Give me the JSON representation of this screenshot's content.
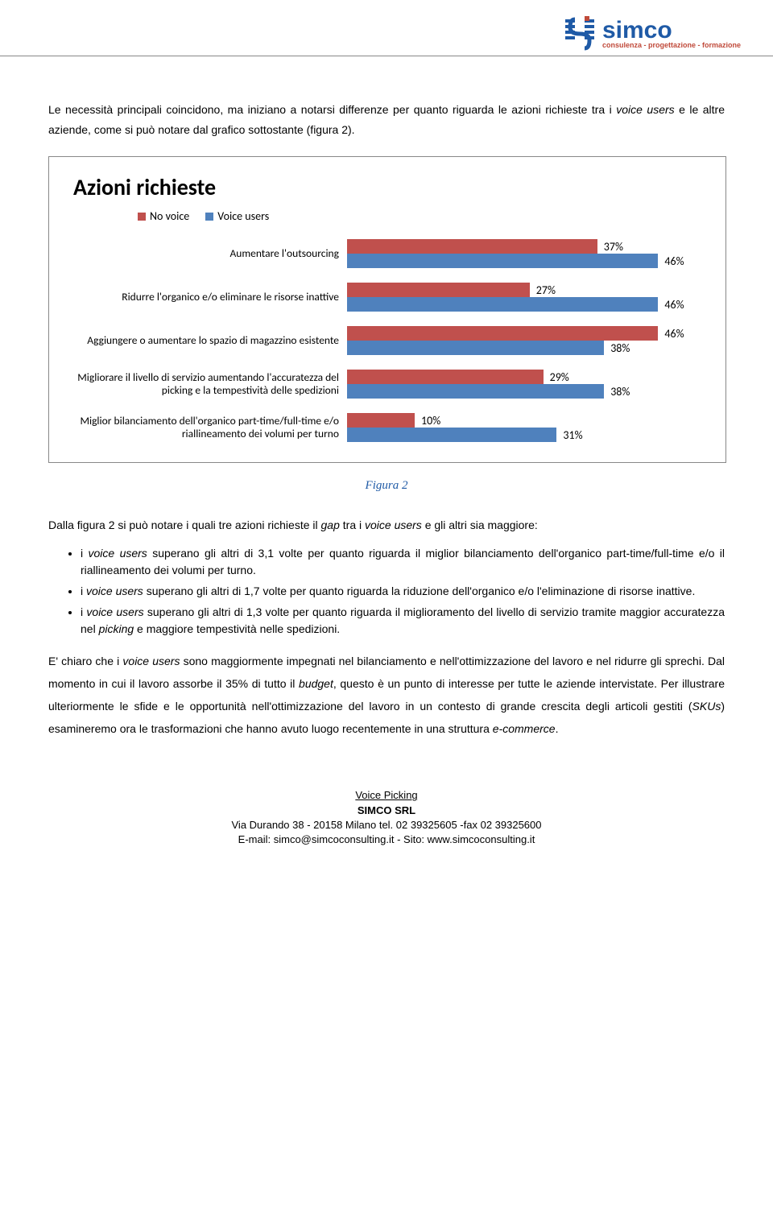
{
  "logo": {
    "brand": "simco",
    "tagline": "consulenza - progettazione - formazione",
    "stripe_color": "#1f5aa6",
    "accent_color": "#c04a3a",
    "tagline_color": "#c04a3a"
  },
  "intro": "Le necessità principali coincidono, ma iniziano a notarsi differenze per quanto riguarda le azioni richieste tra i <em>voice users</em> e le altre aziende, come si può notare dal grafico sottostante (figura 2).",
  "chart": {
    "title": "Azioni richieste",
    "legend": [
      {
        "label": "No voice",
        "color": "#c0504d"
      },
      {
        "label": "Voice users",
        "color": "#4f81bd"
      }
    ],
    "max": 50,
    "categories": [
      {
        "label": "Aumentare l'outsourcing",
        "values": [
          37,
          46
        ]
      },
      {
        "label": "Ridurre l'organico e/o eliminare le risorse inattive",
        "values": [
          27,
          46
        ]
      },
      {
        "label": "Aggiungere o aumentare lo spazio di magazzino esistente",
        "values": [
          46,
          38
        ]
      },
      {
        "label": "Migliorare il livello di servizio aumentando l'accuratezza del picking e la tempestività delle spedizioni",
        "values": [
          29,
          38
        ]
      },
      {
        "label": "Miglior bilanciamento dell'organico part-time/full-time e/o riallineamento dei volumi per turno",
        "values": [
          10,
          31
        ]
      }
    ]
  },
  "caption": "Figura 2",
  "para2": "Dalla figura 2 si può notare i quali tre azioni richieste il <em>gap</em> tra i <em>voice users</em> e gli altri sia maggiore:",
  "bullets": [
    "i <em>voice users</em> superano gli altri di 3,1 volte per quanto riguarda il miglior bilanciamento dell'organico part-time/full-time e/o il riallineamento dei volumi per turno.",
    "i <em>voice users</em> superano gli altri di 1,7 volte per quanto riguarda la riduzione dell'organico e/o l'eliminazione di risorse inattive.",
    "i <em>voice users</em> superano gli altri di 1,3 volte per quanto riguarda il miglioramento del livello di servizio tramite maggior accuratezza nel <em>picking</em> e maggiore tempestività nelle spedizioni."
  ],
  "para3": "E' chiaro che i <em>voice users</em> sono maggiormente impegnati nel bilanciamento e nell'ottimizzazione del lavoro e nel ridurre gli sprechi. Dal momento in cui il lavoro assorbe il 35% di tutto il <em>budget</em>, questo è un punto di interesse per tutte le aziende intervistate. Per illustrare ulteriormente le sfide e le opportunità nell'ottimizzazione del lavoro in un contesto di grande crescita degli articoli gestiti (<em>SKUs</em>) esamineremo ora le trasformazioni che hanno avuto luogo recentemente in una struttura <em>e-commerce</em>.",
  "footer": {
    "line1": "Voice Picking",
    "line2": "SIMCO SRL",
    "line3": "Via Durando 38 - 20158 Milano tel. 02 39325605 -fax 02 39325600",
    "line4": "E-mail: simco@simcoconsulting.it - Sito: www.simcoconsulting.it"
  }
}
